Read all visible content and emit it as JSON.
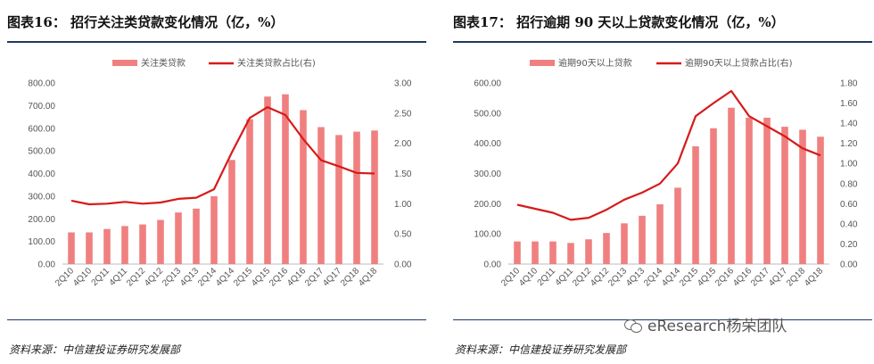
{
  "charts": [
    {
      "id": "left",
      "title": "图表16：  招行关注类贷款变化情况（亿，%）",
      "source": "资料来源：中信建投证券研究发展部",
      "chart_data": {
        "type": "bar",
        "categories": [
          "2Q10",
          "4Q10",
          "2Q11",
          "4Q11",
          "2Q12",
          "4Q12",
          "2Q13",
          "4Q13",
          "2Q14",
          "4Q14",
          "2Q15",
          "4Q15",
          "2Q16",
          "4Q16",
          "2Q17",
          "4Q17",
          "2Q18",
          "4Q18"
        ],
        "series": [
          {
            "name": "关注类贷款",
            "type": "bar",
            "axis": "left",
            "color": "#f08080",
            "values": [
              140,
              140,
              155,
              168,
              175,
              195,
              228,
              245,
              300,
              460,
              640,
              740,
              750,
              680,
              605,
              570,
              585,
              590
            ]
          },
          {
            "name": "关注类贷款占比(右)",
            "type": "line",
            "axis": "right",
            "color": "#d61a1a",
            "values": [
              1.05,
              0.99,
              1.0,
              1.03,
              1.0,
              1.02,
              1.08,
              1.1,
              1.24,
              1.85,
              2.42,
              2.6,
              2.47,
              2.07,
              1.72,
              1.62,
              1.51,
              1.5
            ]
          }
        ],
        "yticks_left": [
          "800.00",
          "700.00",
          "600.00",
          "500.00",
          "400.00",
          "300.00",
          "200.00",
          "100.00",
          "0.00"
        ],
        "yticks_right": [
          "3.00",
          "2.50",
          "2.00",
          "1.50",
          "1.00",
          "0.50",
          "0.00"
        ],
        "ylim_left": [
          0,
          800
        ],
        "ylim_right": [
          0,
          3.0
        ],
        "legend_position": "top-right",
        "grid": false
      }
    },
    {
      "id": "right",
      "title": "图表17：  招行逾期 90 天以上贷款变化情况（亿，%）",
      "source": "资料来源：中信建投证券研究发展部",
      "chart_data": {
        "type": "bar",
        "categories": [
          "2Q10",
          "4Q10",
          "2Q11",
          "4Q11",
          "2Q12",
          "4Q12",
          "2Q13",
          "4Q13",
          "2Q14",
          "4Q14",
          "2Q15",
          "4Q15",
          "2Q16",
          "4Q16",
          "2Q17",
          "4Q17",
          "2Q18",
          "4Q18"
        ],
        "series": [
          {
            "name": "逾期90天以上贷款",
            "type": "bar",
            "axis": "left",
            "color": "#f08080",
            "values": [
              75,
              75,
              75,
              70,
              82,
              103,
              135,
              160,
              198,
              253,
              390,
              450,
              518,
              485,
              485,
              455,
              445,
              422
            ]
          },
          {
            "name": "逾期90天以上贷款占比(右)",
            "type": "line",
            "axis": "right",
            "color": "#d61a1a",
            "values": [
              0.59,
              0.55,
              0.51,
              0.44,
              0.46,
              0.54,
              0.64,
              0.71,
              0.8,
              1.0,
              1.47,
              1.6,
              1.72,
              1.47,
              1.37,
              1.27,
              1.15,
              1.08
            ]
          }
        ],
        "yticks_left": [
          "600.00",
          "500.00",
          "400.00",
          "300.00",
          "200.00",
          "100.00",
          "0.00"
        ],
        "yticks_right": [
          "1.80",
          "1.60",
          "1.40",
          "1.20",
          "1.00",
          "0.80",
          "0.60",
          "0.40",
          "0.20",
          "0.00"
        ],
        "ylim_left": [
          0,
          600
        ],
        "ylim_right": [
          0,
          1.8
        ],
        "legend_position": "top-right",
        "grid": false
      }
    }
  ],
  "watermark": "eResearch杨荣团队"
}
